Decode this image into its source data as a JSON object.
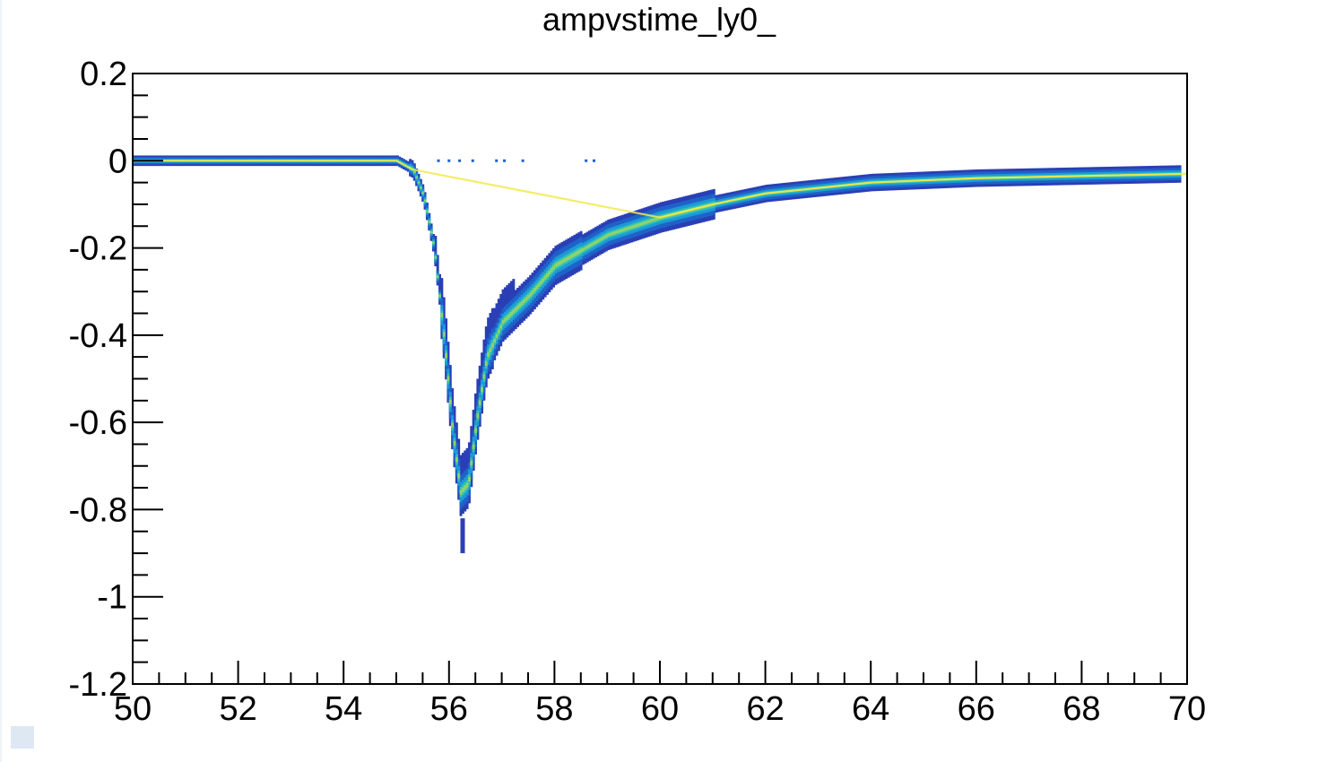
{
  "chart_data": {
    "type": "heatmap",
    "title": "ampvstime_ly0_",
    "xlabel": "",
    "ylabel": "",
    "xlim": [
      50,
      70
    ],
    "ylim": [
      -1.2,
      0.2
    ],
    "x_ticks": [
      "50",
      "52",
      "54",
      "56",
      "58",
      "60",
      "62",
      "64",
      "66",
      "68",
      "70"
    ],
    "y_ticks": [
      "0.2",
      "0",
      "-0.2",
      "-0.4",
      "-0.6",
      "-0.8",
      "-1",
      "-1.2"
    ],
    "grid": false,
    "colormap": [
      "#2a3fb5",
      "#1f62c8",
      "#1d9ad6",
      "#2fc1b8",
      "#8ed36a",
      "#f2e94e"
    ],
    "waveform": {
      "baseline_before": {
        "x_range": [
          50,
          55.2
        ],
        "amplitude": 0.0
      },
      "dense_band": [
        [
          50,
          0.0
        ],
        [
          55.0,
          0.0
        ],
        [
          55.3,
          -0.02
        ],
        [
          55.5,
          -0.08
        ],
        [
          55.7,
          -0.2
        ],
        [
          55.9,
          -0.42
        ],
        [
          56.05,
          -0.62
        ],
        [
          56.2,
          -0.76
        ],
        [
          56.35,
          -0.74
        ],
        [
          56.5,
          -0.6
        ],
        [
          56.7,
          -0.45
        ],
        [
          57.0,
          -0.37
        ],
        [
          57.5,
          -0.31
        ],
        [
          58.0,
          -0.24
        ],
        [
          59.0,
          -0.17
        ],
        [
          60.0,
          -0.13
        ],
        [
          61.0,
          -0.1
        ],
        [
          62.0,
          -0.075
        ],
        [
          64.0,
          -0.05
        ],
        [
          66.0,
          -0.04
        ],
        [
          68.0,
          -0.035
        ],
        [
          70.0,
          -0.03
        ]
      ],
      "minimum": {
        "x": 56.25,
        "y": -0.9
      },
      "stray_points": [
        [
          55.8,
          0.0
        ],
        [
          56.0,
          0.0
        ],
        [
          56.2,
          0.0
        ],
        [
          56.45,
          0.0
        ],
        [
          56.9,
          0.0
        ],
        [
          57.05,
          0.0
        ],
        [
          57.4,
          0.0
        ],
        [
          58.6,
          0.0
        ],
        [
          58.75,
          0.0
        ]
      ]
    }
  }
}
